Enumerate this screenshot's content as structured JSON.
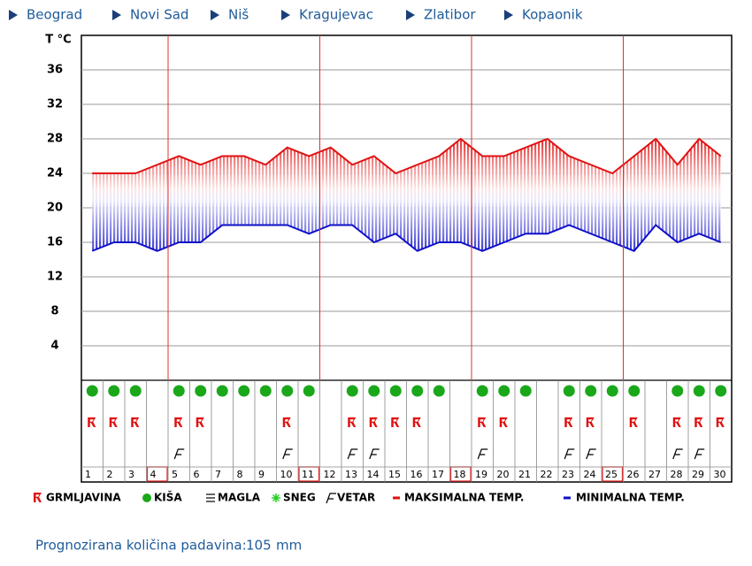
{
  "nav": [
    "Beograd",
    "Novi Sad",
    "Niš",
    "Kragujevac",
    "Zlatibor",
    "Kopaonik"
  ],
  "chart_data": {
    "type": "line",
    "y_label": "T °C",
    "categories": [
      1,
      2,
      3,
      4,
      5,
      6,
      7,
      8,
      9,
      10,
      11,
      12,
      13,
      14,
      15,
      16,
      17,
      18,
      19,
      20,
      21,
      22,
      23,
      24,
      25,
      26,
      27,
      28,
      29,
      30
    ],
    "highlighted": [
      false,
      false,
      false,
      true,
      false,
      false,
      false,
      false,
      false,
      false,
      true,
      false,
      false,
      false,
      false,
      false,
      false,
      true,
      false,
      false,
      false,
      false,
      false,
      false,
      true,
      false,
      false,
      false,
      false,
      false
    ],
    "series": [
      {
        "name": "MAKSIMALNA TEMP.",
        "color": "#e01010",
        "values": [
          24,
          24,
          24,
          25,
          26,
          25,
          26,
          26,
          25,
          27,
          26,
          27,
          25,
          26,
          24,
          25,
          26,
          28,
          26,
          26,
          27,
          28,
          26,
          25,
          24,
          26,
          28,
          25,
          28,
          26
        ]
      },
      {
        "name": "MINIMALNA TEMP.",
        "color": "#1010c8",
        "values": [
          15,
          16,
          16,
          15,
          16,
          16,
          18,
          18,
          18,
          18,
          17,
          18,
          18,
          16,
          17,
          15,
          16,
          16,
          15,
          16,
          17,
          17,
          18,
          17,
          16,
          15,
          18,
          16,
          17,
          16
        ]
      }
    ],
    "ylim": [
      0,
      40
    ],
    "yticks": [
      4,
      8,
      12,
      16,
      20,
      24,
      28,
      32,
      36
    ],
    "grid": true,
    "symbols": [
      "GRMLJAVINA",
      "KIŠA",
      "MAGLA",
      "SNEG",
      "VETAR"
    ],
    "storm": [
      true,
      true,
      true,
      false,
      true,
      true,
      false,
      false,
      false,
      true,
      false,
      false,
      true,
      true,
      true,
      true,
      false,
      false,
      true,
      true,
      false,
      false,
      true,
      true,
      false,
      true,
      false,
      true,
      true,
      true
    ],
    "rain": [
      true,
      true,
      true,
      false,
      true,
      true,
      true,
      true,
      true,
      true,
      true,
      false,
      true,
      true,
      true,
      true,
      true,
      false,
      true,
      true,
      true,
      false,
      true,
      true,
      true,
      true,
      false,
      true,
      true,
      true
    ],
    "wind": [
      false,
      false,
      false,
      false,
      true,
      false,
      false,
      false,
      false,
      true,
      false,
      false,
      true,
      true,
      false,
      false,
      false,
      false,
      true,
      false,
      false,
      false,
      true,
      true,
      false,
      false,
      false,
      true,
      true,
      false
    ]
  },
  "footer": {
    "label": "Prognozirana količina padavina:",
    "value": 105,
    "unit": "mm"
  }
}
